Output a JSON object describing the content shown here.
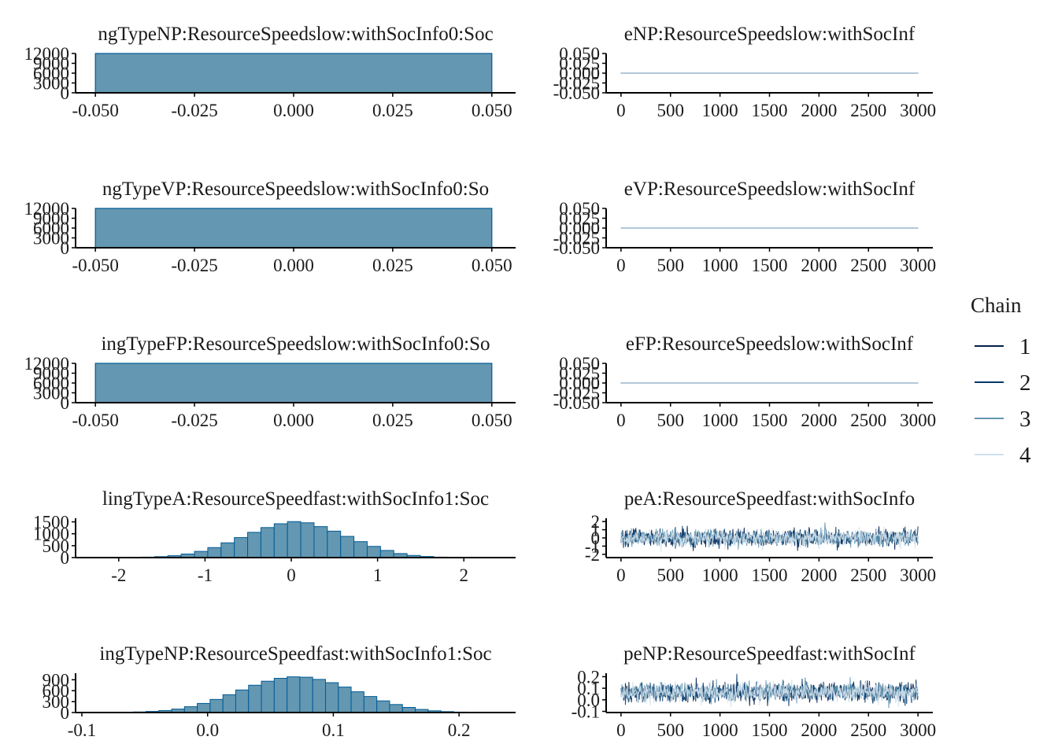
{
  "legend": {
    "title": "Chain",
    "items": [
      {
        "label": "1",
        "color": "#011f4b"
      },
      {
        "label": "2",
        "color": "#03396c"
      },
      {
        "label": "3",
        "color": "#6497b1"
      },
      {
        "label": "4",
        "color": "#d1e1ec"
      }
    ]
  },
  "colors": {
    "hist_fill": "#6497b1",
    "hist_stroke": "#005b96"
  },
  "chart_data": [
    {
      "type": "bar",
      "title": "ngTypeNP:ResourceSpeedslow:withSocInfo0:Soc",
      "x_ticks": [
        -0.05,
        -0.025,
        0,
        0.025,
        0.05
      ],
      "x_tick_labels": [
        "-0.050",
        "-0.025",
        "0.000",
        "0.025",
        "0.050"
      ],
      "xlim": [
        -0.055,
        0.056
      ],
      "y_ticks": [
        0,
        3000,
        6000,
        9000,
        12000
      ],
      "y_tick_labels": [
        "0",
        "3000",
        "6000",
        "9000",
        "12000"
      ],
      "ylim": [
        0,
        12000
      ],
      "bins": [
        {
          "x0": -0.05,
          "x1": 0.05,
          "count": 12000
        }
      ]
    },
    {
      "type": "line",
      "title": "eNP:ResourceSpeedslow:withSocInf",
      "x_ticks": [
        0,
        500,
        1000,
        1500,
        2000,
        2500,
        3000
      ],
      "x_tick_labels": [
        "0",
        "500",
        "1000",
        "1500",
        "2000",
        "2500",
        "3000"
      ],
      "xlim": [
        -150,
        3150
      ],
      "y_ticks": [
        -0.05,
        -0.025,
        0,
        0.025,
        0.05
      ],
      "y_tick_labels": [
        "-0.050",
        "-0.025",
        "0.000",
        "0.025",
        "0.050"
      ],
      "ylim": [
        -0.05,
        0.05
      ],
      "series_kind": "constant",
      "center": 0,
      "spread": 0,
      "iterations": 3000
    },
    {
      "type": "bar",
      "title": "ngTypeVP:ResourceSpeedslow:withSocInfo0:So",
      "x_ticks": [
        -0.05,
        -0.025,
        0,
        0.025,
        0.05
      ],
      "x_tick_labels": [
        "-0.050",
        "-0.025",
        "0.000",
        "0.025",
        "0.050"
      ],
      "xlim": [
        -0.055,
        0.056
      ],
      "y_ticks": [
        0,
        3000,
        6000,
        9000,
        12000
      ],
      "y_tick_labels": [
        "0",
        "3000",
        "6000",
        "9000",
        "12000"
      ],
      "ylim": [
        0,
        12000
      ],
      "bins": [
        {
          "x0": -0.05,
          "x1": 0.05,
          "count": 12000
        }
      ]
    },
    {
      "type": "line",
      "title": "eVP:ResourceSpeedslow:withSocInf",
      "x_ticks": [
        0,
        500,
        1000,
        1500,
        2000,
        2500,
        3000
      ],
      "x_tick_labels": [
        "0",
        "500",
        "1000",
        "1500",
        "2000",
        "2500",
        "3000"
      ],
      "xlim": [
        -150,
        3150
      ],
      "y_ticks": [
        -0.05,
        -0.025,
        0,
        0.025,
        0.05
      ],
      "y_tick_labels": [
        "-0.050",
        "-0.025",
        "0.000",
        "0.025",
        "0.050"
      ],
      "ylim": [
        -0.05,
        0.05
      ],
      "series_kind": "constant",
      "center": 0,
      "spread": 0,
      "iterations": 3000
    },
    {
      "type": "bar",
      "title": "ingTypeFP:ResourceSpeedslow:withSocInfo0:So",
      "x_ticks": [
        -0.05,
        -0.025,
        0,
        0.025,
        0.05
      ],
      "x_tick_labels": [
        "-0.050",
        "-0.025",
        "0.000",
        "0.025",
        "0.050"
      ],
      "xlim": [
        -0.055,
        0.056
      ],
      "y_ticks": [
        0,
        3000,
        6000,
        9000,
        12000
      ],
      "y_tick_labels": [
        "0",
        "3000",
        "6000",
        "9000",
        "12000"
      ],
      "ylim": [
        0,
        12000
      ],
      "bins": [
        {
          "x0": -0.05,
          "x1": 0.05,
          "count": 12000
        }
      ]
    },
    {
      "type": "line",
      "title": "eFP:ResourceSpeedslow:withSocInf",
      "x_ticks": [
        0,
        500,
        1000,
        1500,
        2000,
        2500,
        3000
      ],
      "x_tick_labels": [
        "0",
        "500",
        "1000",
        "1500",
        "2000",
        "2500",
        "3000"
      ],
      "xlim": [
        -150,
        3150
      ],
      "y_ticks": [
        -0.05,
        -0.025,
        0,
        0.025,
        0.05
      ],
      "y_tick_labels": [
        "-0.050",
        "-0.025",
        "0.000",
        "0.025",
        "0.050"
      ],
      "ylim": [
        -0.05,
        0.05
      ],
      "series_kind": "constant",
      "center": 0,
      "spread": 0,
      "iterations": 3000
    },
    {
      "type": "bar",
      "title": "lingTypeA:ResourceSpeedfast:withSocInfo1:Soc",
      "x_ticks": [
        -2,
        -1,
        0,
        1,
        2
      ],
      "x_tick_labels": [
        "-2",
        "-1",
        "0",
        "1",
        "2"
      ],
      "xlim": [
        -2.5,
        2.6
      ],
      "y_ticks": [
        0,
        500,
        1000,
        1500
      ],
      "y_tick_labels": [
        "0",
        "500",
        "1000",
        "1500"
      ],
      "ylim": [
        0,
        1650
      ],
      "bin_start": -2.2,
      "bin_width": 0.154,
      "counts": [
        2,
        5,
        10,
        20,
        40,
        80,
        150,
        260,
        420,
        620,
        840,
        1060,
        1260,
        1420,
        1510,
        1460,
        1300,
        1110,
        890,
        670,
        470,
        300,
        170,
        90,
        45,
        20,
        8,
        3
      ]
    },
    {
      "type": "line",
      "title": "peA:ResourceSpeedfast:withSocInfo",
      "x_ticks": [
        0,
        500,
        1000,
        1500,
        2000,
        2500,
        3000
      ],
      "x_tick_labels": [
        "0",
        "500",
        "1000",
        "1500",
        "2000",
        "2500",
        "3000"
      ],
      "xlim": [
        -150,
        3150
      ],
      "y_ticks": [
        -2,
        -1,
        0,
        1,
        2
      ],
      "y_tick_labels": [
        "-2",
        "-1",
        "0",
        "1",
        "2"
      ],
      "ylim": [
        -2.4,
        2.4
      ],
      "series_kind": "noise",
      "center": 0.0,
      "spread": 0.5,
      "iterations": 3000
    },
    {
      "type": "bar",
      "title": "ingTypeNP:ResourceSpeedfast:withSocInfo1:Soc",
      "x_ticks": [
        -0.1,
        0,
        0.1,
        0.2
      ],
      "x_tick_labels": [
        "-0.1",
        "0.0",
        "0.1",
        "0.2"
      ],
      "xlim": [
        -0.105,
        0.245
      ],
      "y_ticks": [
        0,
        300,
        600,
        900
      ],
      "y_tick_labels": [
        "0",
        "300",
        "600",
        "900"
      ],
      "ylim": [
        0,
        1080
      ],
      "bin_start": -0.1,
      "bin_width": 0.0102,
      "counts": [
        1,
        2,
        4,
        8,
        16,
        30,
        55,
        95,
        160,
        250,
        360,
        490,
        620,
        750,
        860,
        940,
        980,
        970,
        910,
        820,
        700,
        570,
        440,
        320,
        220,
        140,
        85,
        48,
        25,
        12,
        6,
        3,
        1
      ]
    },
    {
      "type": "line",
      "title": "peNP:ResourceSpeedfast:withSocInf",
      "x_ticks": [
        0,
        500,
        1000,
        1500,
        2000,
        2500,
        3000
      ],
      "x_tick_labels": [
        "0",
        "500",
        "1000",
        "1500",
        "2000",
        "2500",
        "3000"
      ],
      "xlim": [
        -150,
        3150
      ],
      "y_ticks": [
        -0.1,
        0,
        0.1,
        0.2
      ],
      "y_tick_labels": [
        "-0.1",
        "0.0",
        "0.1",
        "0.2"
      ],
      "ylim": [
        -0.11,
        0.23
      ],
      "series_kind": "noise",
      "center": 0.065,
      "spread": 0.04,
      "iterations": 3000
    }
  ]
}
